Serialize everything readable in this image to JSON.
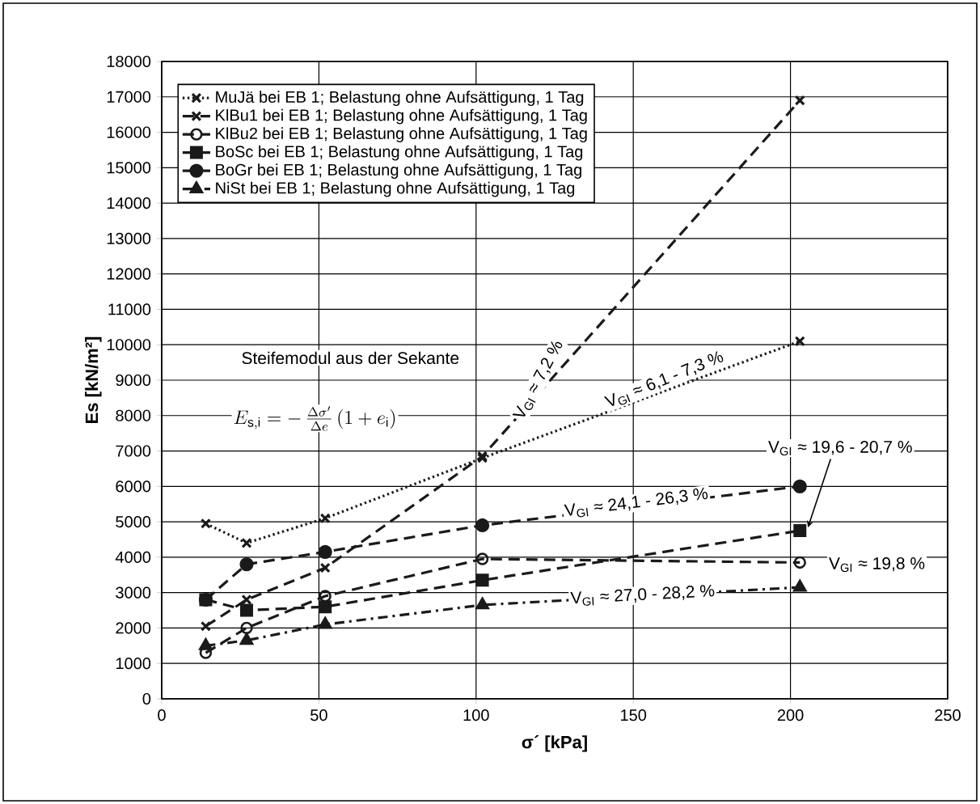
{
  "chart_data": {
    "type": "line",
    "xlabel": "σ´ [kPa]",
    "ylabel": "Es [kN/m²]",
    "x": [
      14,
      27,
      52,
      102,
      203
    ],
    "series": [
      {
        "name": "MuJä bei EB 1; Belastung ohne Aufsättigung, 1 Tag",
        "color": "#1a1a1a",
        "marker": "cross",
        "line_style": "dotted",
        "values": [
          4950,
          4400,
          5100,
          6800,
          10100
        ]
      },
      {
        "name": "KlBu1 bei EB 1; Belastung ohne Aufsättigung, 1 Tag",
        "color": "#1a1a1a",
        "marker": "cross",
        "line_style": "dashed",
        "values": [
          2050,
          2800,
          3700,
          6850,
          16900
        ]
      },
      {
        "name": "KlBu2 bei EB 1; Belastung ohne Aufsättigung, 1 Tag",
        "color": "#1a1a1a",
        "marker": "circle open",
        "line_style": "dashed",
        "values": [
          1300,
          2000,
          2900,
          3950,
          3850
        ]
      },
      {
        "name": "BoSc bei EB 1; Belastung ohne Aufsättigung, 1 Tag",
        "color": "#1a1a1a",
        "marker": "square",
        "line_style": "dashed",
        "values": [
          2800,
          2500,
          2600,
          3350,
          4750
        ]
      },
      {
        "name": "BoGr bei EB 1; Belastung ohne Aufsättigung, 1 Tag",
        "color": "#1a1a1a",
        "marker": "circle",
        "line_style": "dashed",
        "values": [
          2800,
          3800,
          4150,
          4900,
          6000
        ]
      },
      {
        "name": "NiSt bei EB 1; Belastung ohne Aufsättigung, 1 Tag",
        "color": "#1a1a1a",
        "marker": "triangle",
        "line_style": "dashdot",
        "values": [
          1500,
          1650,
          2100,
          2650,
          3150
        ]
      }
    ],
    "xlim": [
      0,
      250
    ],
    "xticks": [
      0,
      50,
      100,
      150,
      200,
      250
    ],
    "ylim": [
      0,
      18000
    ],
    "yticks": [
      0,
      1000,
      2000,
      3000,
      4000,
      5000,
      6000,
      7000,
      8000,
      9000,
      10000,
      11000,
      12000,
      13000,
      14000,
      15000,
      16000,
      17000,
      18000
    ],
    "grid": true,
    "legend": "top left",
    "annotations": [
      "Steifemodul aus der Sekante",
      "E_{\\mathrm{s,i}} = -\\,\\frac{\\Delta\\sigma'}{\\Delta e}\\left(1+e_{\\mathrm{i}}\\right)",
      {
        "text": "V$_{GI}$ ≈ 7,2 %",
        "x": 120,
        "y": 9000
      },
      "V$_{GI}$ ≈ 6,1 - 7,3 %",
      {
        "text": "V$_{GI}$ ≈ 19,6 - 20,7 %",
        "x": 203,
        "y": 4750
      },
      {
        "text": "V$_{GI}$ ≈ 24,1 - 26,3 %",
        "x": 151,
        "y": 5530
      },
      "V$_{GI}$ ≈ 19,8 %",
      {
        "text": "V$_{GI}$ ≈ 27,0 - 28,2 %",
        "x": 153,
        "y": 2920
      }
    ]
  }
}
